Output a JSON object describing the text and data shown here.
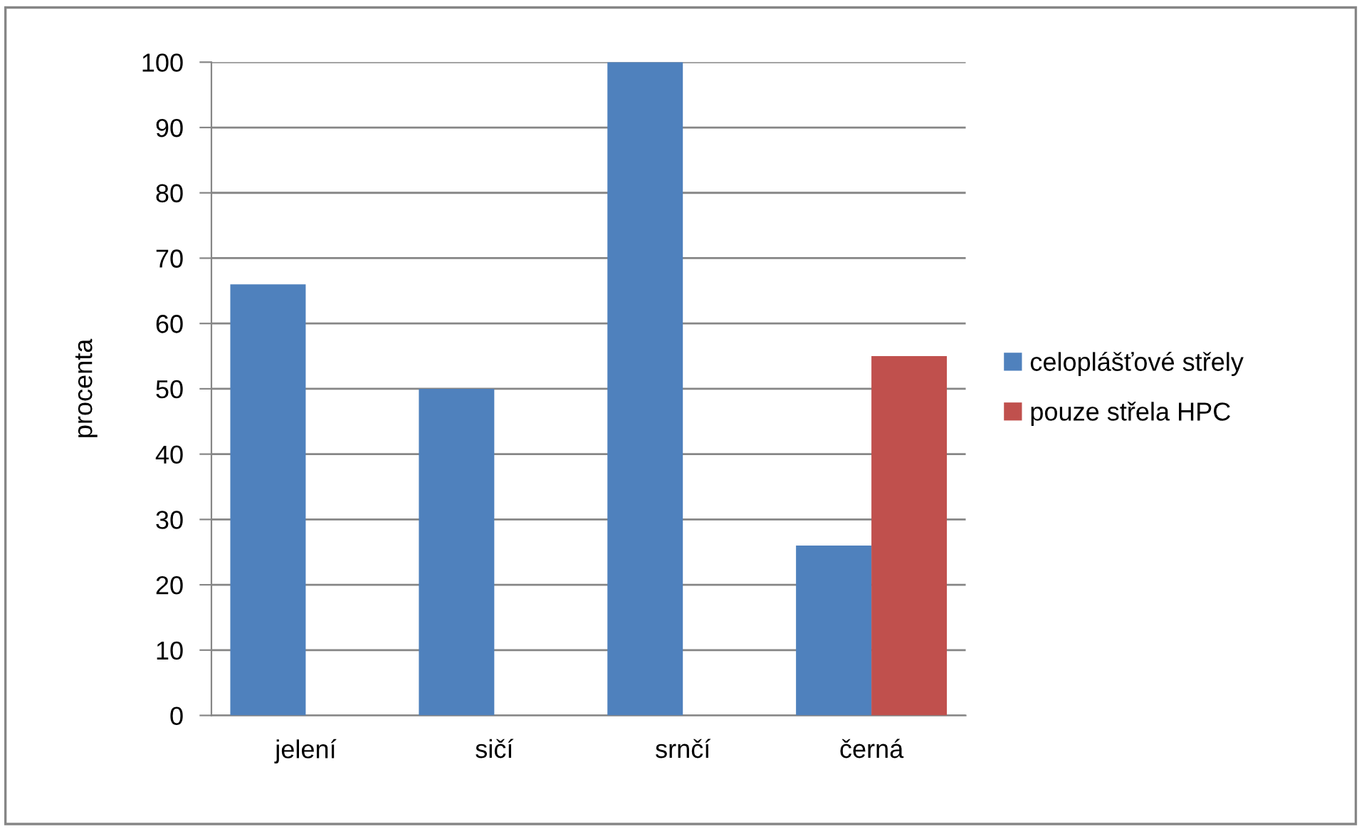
{
  "chart_data": {
    "type": "bar",
    "ylabel": "procenta",
    "categories": [
      "jelení",
      "sičí",
      "srnčí",
      "černá"
    ],
    "series": [
      {
        "name": "celoplášťové střely",
        "color": "#4f81bd",
        "values": [
          66,
          50,
          100,
          26
        ]
      },
      {
        "name": "pouze střela HPC",
        "color": "#c0504d",
        "values": [
          null,
          null,
          null,
          55
        ]
      }
    ],
    "ylim": [
      0,
      100
    ],
    "yticks": [
      0,
      10,
      20,
      30,
      40,
      50,
      60,
      70,
      80,
      90,
      100
    ],
    "grid": "y",
    "legend": "right"
  }
}
